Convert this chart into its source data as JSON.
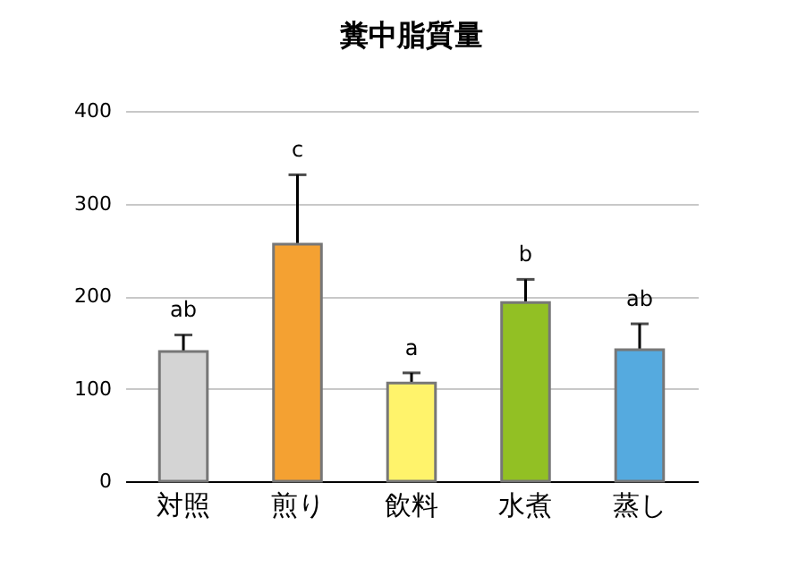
{
  "chart_data": {
    "type": "bar",
    "title": "糞中脂質量",
    "categories": [
      "対照",
      "煎り",
      "飲料",
      "水煮",
      "蒸し"
    ],
    "values": [
      140,
      256,
      106,
      193,
      142
    ],
    "colors": [
      "#d4d4d4",
      "#f4a132",
      "#fff36b",
      "#92c024",
      "#55aadf"
    ],
    "errors": [
      18,
      75,
      11,
      25,
      28
    ],
    "ylim": [
      0,
      400
    ],
    "yticks": [
      0,
      100,
      200,
      300,
      400
    ],
    "grid": "y",
    "annotations": [
      "ab",
      "c",
      "a",
      "b",
      "ab"
    ]
  }
}
